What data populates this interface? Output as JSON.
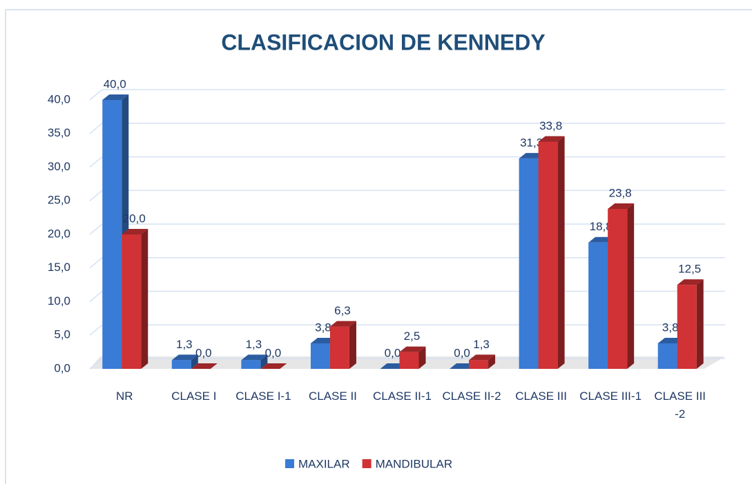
{
  "chart_data": {
    "type": "bar3d",
    "title": "CLASIFICACION DE KENNEDY",
    "categories": [
      "NR",
      "CLASE I",
      "CLASE I-1",
      "CLASE II",
      "CLASE II-1",
      "CLASE II-2",
      "CLASE III",
      "CLASE III-1",
      "CLASE III -2"
    ],
    "series": [
      {
        "name": "MAXILAR",
        "color": "#3a7bd5",
        "values": [
          40,
          1.3,
          1.3,
          3.8,
          0,
          0,
          31.3,
          18.8,
          3.8
        ],
        "value_labels": [
          "40,0",
          "1,3",
          "1,3",
          "3,8",
          "0,0",
          "0,0",
          "31,3",
          "18,8",
          "3,8"
        ]
      },
      {
        "name": "MANDIBULAR",
        "color": "#d03235",
        "values": [
          20,
          0,
          0,
          6.3,
          2.5,
          1.3,
          33.8,
          23.8,
          12.5
        ],
        "value_labels": [
          "20,0",
          "0,0",
          "0,0",
          "6,3",
          "2,5",
          "1,3",
          "33,8",
          "23,8",
          "12,5"
        ]
      }
    ],
    "ylim": [
      0,
      40
    ],
    "yticks": [
      {
        "value": 0,
        "label": "0,0"
      },
      {
        "value": 5,
        "label": "5,0"
      },
      {
        "value": 10,
        "label": "10,0"
      },
      {
        "value": 15,
        "label": "15,0"
      },
      {
        "value": 20,
        "label": "20,0"
      },
      {
        "value": 25,
        "label": "25,0"
      },
      {
        "value": 30,
        "label": "30,0"
      },
      {
        "value": 35,
        "label": "35,0"
      },
      {
        "value": 40,
        "label": "40,0"
      }
    ],
    "grid": true,
    "legend": "bottom"
  }
}
